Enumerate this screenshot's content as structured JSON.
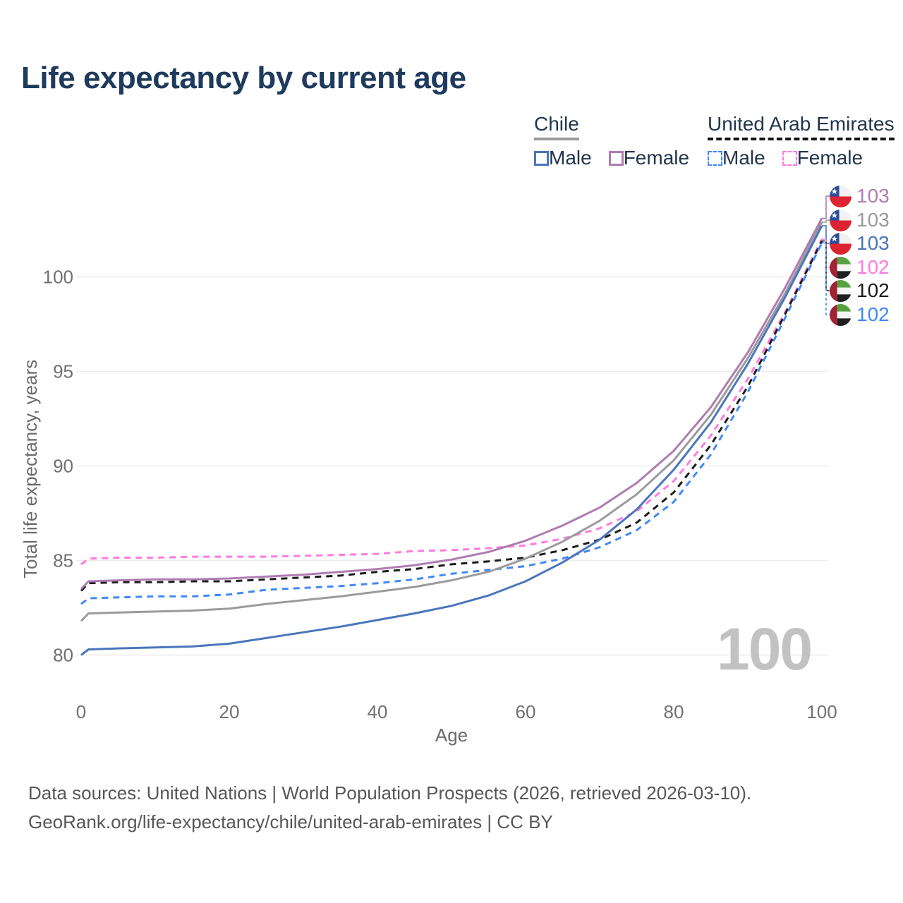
{
  "title": "Life expectancy by current age",
  "legend": {
    "chile": {
      "label": "Chile",
      "male_label": "Male",
      "female_label": "Female"
    },
    "uae": {
      "label": "United Arab Emirates",
      "male_label": "Male",
      "female_label": "Female"
    }
  },
  "axes": {
    "y_label": "Total life expectancy, years",
    "x_label": "Age"
  },
  "age_indicator": "100",
  "right_labels": [
    {
      "value": "103",
      "flag": "chile",
      "series": "chile_female",
      "color": "#b07cb0"
    },
    {
      "value": "103",
      "flag": "chile",
      "series": "chile_both",
      "color": "#9b9b9b"
    },
    {
      "value": "103",
      "flag": "chile",
      "series": "chile_male",
      "color": "#4a76bc"
    },
    {
      "value": "102",
      "flag": "uae",
      "series": "uae_female",
      "color": "#ff7ae0"
    },
    {
      "value": "102",
      "flag": "uae",
      "series": "uae_both",
      "color": "#1c1c1c"
    },
    {
      "value": "102",
      "flag": "uae",
      "series": "uae_male",
      "color": "#4089f7"
    }
  ],
  "chart_data": {
    "type": "line",
    "title": "Life expectancy by current age",
    "xlabel": "Age",
    "ylabel": "Total life expectancy, years",
    "xlim": [
      0,
      100
    ],
    "ylim": [
      79,
      104
    ],
    "x_ticks": [
      0,
      20,
      40,
      60,
      80,
      100
    ],
    "y_ticks": [
      80,
      85,
      90,
      95,
      100
    ],
    "grid": "horizontal",
    "legend_position": "top-right",
    "x": [
      0,
      1,
      5,
      10,
      15,
      20,
      25,
      30,
      35,
      40,
      45,
      50,
      55,
      60,
      65,
      70,
      75,
      80,
      85,
      90,
      95,
      100
    ],
    "series": [
      {
        "key": "uae_female",
        "name": "United Arab Emirates Female",
        "color": "#ff7ae0",
        "style": "dashed",
        "values": [
          84.8,
          85.1,
          85.15,
          85.15,
          85.2,
          85.2,
          85.2,
          85.25,
          85.3,
          85.35,
          85.5,
          85.55,
          85.65,
          85.8,
          86.15,
          86.7,
          87.6,
          89.2,
          91.6,
          94.6,
          98.1,
          102.0
        ]
      },
      {
        "key": "uae_both",
        "name": "United Arab Emirates Both sexes",
        "color": "#1c1c1c",
        "style": "dashed",
        "values": [
          83.4,
          83.8,
          83.85,
          83.85,
          83.9,
          83.9,
          84.0,
          84.1,
          84.2,
          84.4,
          84.55,
          84.8,
          84.95,
          85.15,
          85.55,
          86.1,
          87.0,
          88.6,
          91.1,
          94.2,
          98.0,
          101.9
        ]
      },
      {
        "key": "uae_male",
        "name": "United Arab Emirates Male",
        "color": "#4089f7",
        "style": "dashed",
        "values": [
          82.7,
          83.0,
          83.05,
          83.1,
          83.1,
          83.2,
          83.45,
          83.55,
          83.65,
          83.8,
          84.0,
          84.3,
          84.5,
          84.7,
          85.1,
          85.7,
          86.6,
          88.1,
          90.6,
          93.9,
          97.8,
          101.8
        ]
      },
      {
        "key": "chile_both",
        "name": "Chile Both sexes",
        "color": "#9b9b9b",
        "style": "solid",
        "values": [
          81.8,
          82.2,
          82.25,
          82.3,
          82.35,
          82.45,
          82.7,
          82.9,
          83.1,
          83.35,
          83.6,
          83.95,
          84.4,
          85.1,
          86.0,
          87.1,
          88.5,
          90.3,
          92.7,
          95.7,
          99.1,
          102.9
        ]
      },
      {
        "key": "chile_male",
        "name": "Chile Male",
        "color": "#4a76bc",
        "style": "solid",
        "values": [
          80.0,
          80.3,
          80.35,
          80.4,
          80.45,
          80.6,
          80.9,
          81.2,
          81.5,
          81.85,
          82.2,
          82.6,
          83.15,
          83.9,
          84.9,
          86.1,
          87.7,
          89.8,
          92.3,
          95.4,
          98.9,
          102.7
        ]
      },
      {
        "key": "chile_female",
        "name": "Chile Female",
        "color": "#b07cb0",
        "style": "solid",
        "values": [
          83.5,
          83.9,
          83.95,
          84.0,
          84.0,
          84.05,
          84.15,
          84.25,
          84.4,
          84.55,
          84.75,
          85.05,
          85.45,
          86.05,
          86.85,
          87.8,
          89.1,
          90.8,
          93.1,
          96.0,
          99.4,
          103.1
        ]
      }
    ]
  },
  "footer": {
    "line1": "Data sources: United Nations | World Population Prospects (2026, retrieved 2026-03-10).",
    "line2": "GeoRank.org/life-expectancy/chile/united-arab-emirates | CC BY"
  }
}
